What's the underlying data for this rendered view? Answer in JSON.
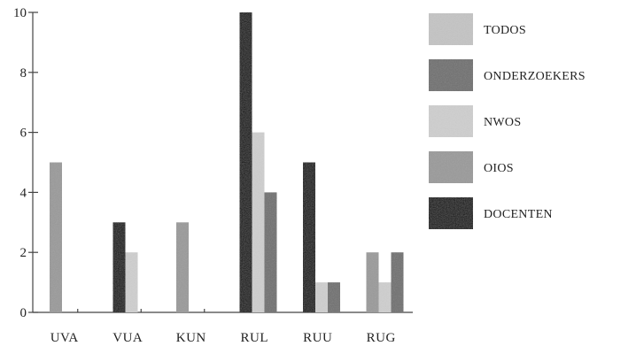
{
  "chart_data": {
    "type": "bar",
    "categories": [
      "UVA",
      "VUA",
      "KUN",
      "RUL",
      "RUU",
      "RUG"
    ],
    "series": [
      {
        "name": "DOCENTEN",
        "color": "#0d0d0d",
        "values": [
          0,
          3,
          0,
          10,
          5,
          0
        ]
      },
      {
        "name": "OIOS",
        "color": "#9a9a9a",
        "values": [
          5,
          0,
          3,
          0,
          0,
          2
        ]
      },
      {
        "name": "NWOS",
        "color": "#cfcfcf",
        "values": [
          0,
          2,
          0,
          6,
          1,
          1
        ]
      },
      {
        "name": "ONDERZOEKERS",
        "color": "#707070",
        "values": [
          0,
          0,
          0,
          4,
          1,
          2
        ]
      },
      {
        "name": "TODOS",
        "color": "#c4c4c4",
        "values": [
          0,
          0,
          0,
          0,
          0,
          0
        ]
      }
    ],
    "legend_order": [
      "TODOS",
      "ONDERZOEKERS",
      "NWOS",
      "OIOS",
      "DOCENTEN"
    ],
    "ylim": [
      0,
      10
    ],
    "yticks": [
      "0",
      "2",
      "4",
      "6",
      "8",
      "10"
    ],
    "title": "",
    "xlabel": "",
    "ylabel": "",
    "grid": false,
    "legend_position": "right"
  }
}
